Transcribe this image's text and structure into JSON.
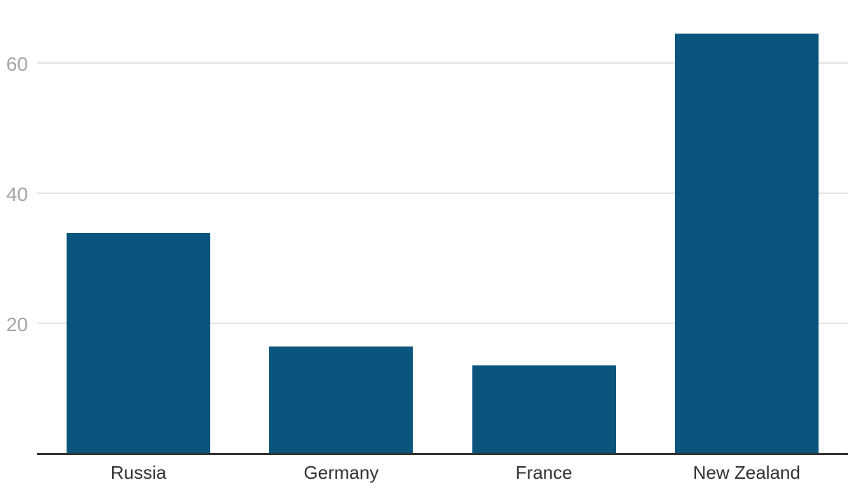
{
  "chart_data": {
    "type": "bar",
    "title": "",
    "xlabel": "",
    "ylabel": "",
    "categories": [
      "Russia",
      "Germany",
      "France",
      "New Zealand"
    ],
    "values": [
      33.9,
      16.5,
      13.5,
      64.5
    ],
    "yticks": [
      20,
      40,
      60
    ],
    "ylim": [
      0,
      70
    ],
    "grid": "horizontal-only",
    "legend": "none",
    "colors": {
      "bar": "#0a557d",
      "gridline": "#e4e4e4",
      "axis_line": "#333333",
      "y_tick_text": "#a6a6a6",
      "x_label_text": "#333333",
      "background": "#ffffff"
    }
  }
}
